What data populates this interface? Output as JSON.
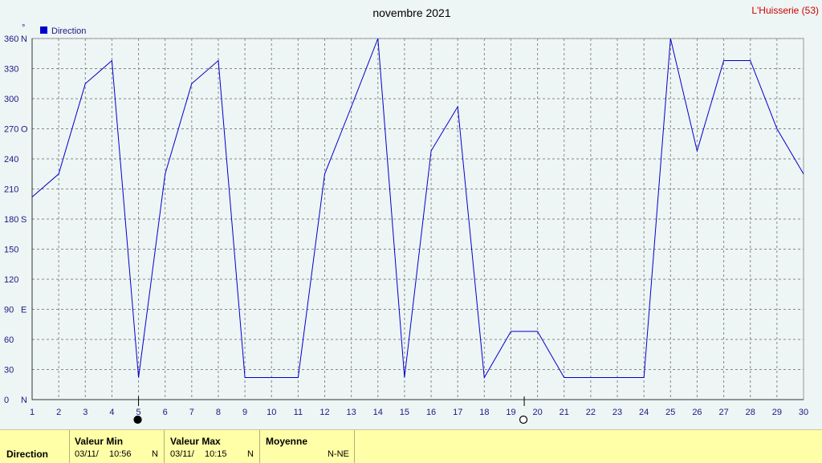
{
  "title": "novembre 2021",
  "station": "L'Huisserie (53)",
  "unit_label": "°",
  "colors": {
    "line": "#0000cc",
    "background": "#eef5f5",
    "grid": "#888888",
    "station": "#cc0000",
    "stats_bg": "#ffffa8"
  },
  "chart_data": {
    "type": "line",
    "title": "novembre 2021",
    "xlabel": "",
    "ylabel": "°",
    "grid": true,
    "legend_position": "top-left",
    "ylim": [
      0,
      360
    ],
    "xlim": [
      1,
      30
    ],
    "yticks": [
      {
        "value": 0,
        "label": "0",
        "dir": "N"
      },
      {
        "value": 30,
        "label": "30",
        "dir": ""
      },
      {
        "value": 60,
        "label": "60",
        "dir": ""
      },
      {
        "value": 90,
        "label": "90",
        "dir": "E"
      },
      {
        "value": 120,
        "label": "120",
        "dir": ""
      },
      {
        "value": 150,
        "label": "150",
        "dir": ""
      },
      {
        "value": 180,
        "label": "180",
        "dir": "S"
      },
      {
        "value": 210,
        "label": "210",
        "dir": ""
      },
      {
        "value": 240,
        "label": "240",
        "dir": ""
      },
      {
        "value": 270,
        "label": "270",
        "dir": "O"
      },
      {
        "value": 300,
        "label": "300",
        "dir": ""
      },
      {
        "value": 330,
        "label": "330",
        "dir": ""
      },
      {
        "value": 360,
        "label": "360",
        "dir": "N"
      }
    ],
    "xticks": [
      "1",
      "2",
      "3",
      "4",
      "5",
      "6",
      "7",
      "8",
      "9",
      "10",
      "11",
      "12",
      "13",
      "14",
      "15",
      "16",
      "17",
      "18",
      "19",
      "20",
      "21",
      "22",
      "23",
      "24",
      "25",
      "26",
      "27",
      "28",
      "29",
      "30"
    ],
    "series": [
      {
        "name": "Direction",
        "x": [
          1,
          2,
          3,
          4,
          5,
          6,
          7,
          8,
          9,
          10,
          11,
          12,
          13,
          14,
          15,
          16,
          17,
          18,
          19,
          20,
          21,
          22,
          23,
          24,
          25,
          26,
          27,
          28,
          29,
          30
        ],
        "values": [
          202,
          225,
          315,
          338,
          22,
          225,
          315,
          338,
          22,
          22,
          22,
          225,
          292,
          360,
          22,
          248,
          292,
          22,
          68,
          68,
          22,
          22,
          22,
          22,
          360,
          248,
          338,
          338,
          270,
          225
        ]
      }
    ],
    "moon_phases": [
      {
        "day": 5,
        "phase": "new"
      },
      {
        "day": 19.5,
        "phase": "full"
      }
    ]
  },
  "stats": {
    "row_label": "Direction",
    "min": {
      "header": "Valeur Min",
      "date": "03/11/",
      "time": "10:56",
      "dir": "N"
    },
    "max": {
      "header": "Valeur Max",
      "date": "03/11/",
      "time": "10:15",
      "dir": "N"
    },
    "avg": {
      "header": "Moyenne",
      "value": "N-NE"
    }
  }
}
